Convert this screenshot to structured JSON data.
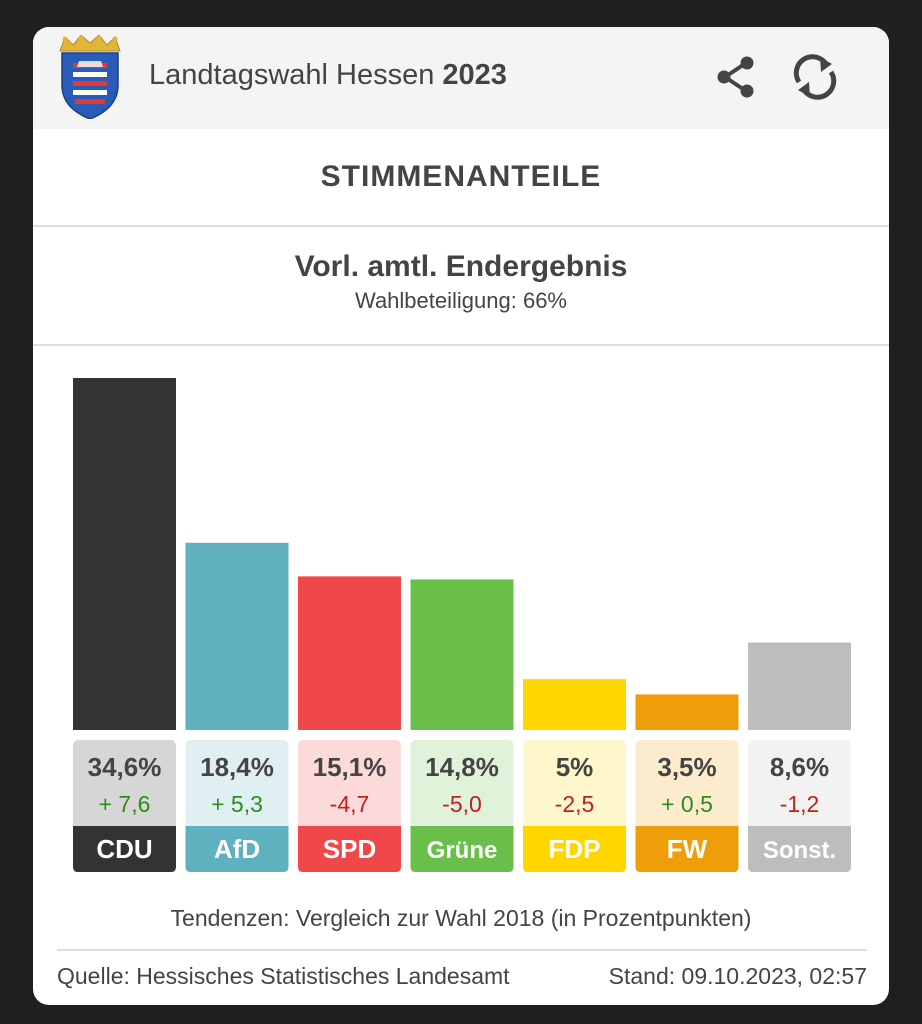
{
  "header": {
    "title_text": "Landtagswahl Hessen ",
    "title_year": "2023"
  },
  "section_title": "STIMMENANTEILE",
  "result": {
    "title": "Vorl. amtl. Endergebnis",
    "turnout": "Wahlbeteiligung: 66%"
  },
  "chart_data": {
    "type": "bar",
    "categories": [
      "CDU",
      "AfD",
      "SPD",
      "Grüne",
      "FDP",
      "FW",
      "Sonst."
    ],
    "values": [
      34.6,
      18.4,
      15.1,
      14.8,
      5,
      3.5,
      8.6
    ],
    "value_labels": [
      "34,6%",
      "18,4%",
      "15,1%",
      "14,8%",
      "5%",
      "3,5%",
      "8,6%"
    ],
    "changes": [
      7.6,
      5.3,
      -4.7,
      -5.0,
      -2.5,
      0.5,
      -1.2
    ],
    "change_labels": [
      "+ 7,6",
      "+ 5,3",
      "-4,7",
      "-5,0",
      "-2,5",
      "+ 0,5",
      "-1,2"
    ],
    "colors": [
      "#333333",
      "#5fb1bf",
      "#f0474b",
      "#6abf4b",
      "#ffd600",
      "#f09d0a",
      "#bdbdbd"
    ],
    "tile_colors": [
      "#d6d6d6",
      "#dfeff2",
      "#fcdada",
      "#e0f2da",
      "#fff7cc",
      "#fdebce",
      "#f2f2f2"
    ],
    "change_colors": {
      "positive": "#2e8b1e",
      "negative": "#c0211b"
    },
    "title": "",
    "xlabel": "",
    "ylabel": "",
    "ylim": [
      0,
      34.6
    ],
    "grid": false,
    "legend": "none"
  },
  "footer": {
    "tendency_note": "Tendenzen: Vergleich zur Wahl 2018 (in Prozentpunkten)",
    "source": "Quelle: Hessisches Statistisches Landesamt",
    "stand": "Stand: 09.10.2023, 02:57"
  }
}
